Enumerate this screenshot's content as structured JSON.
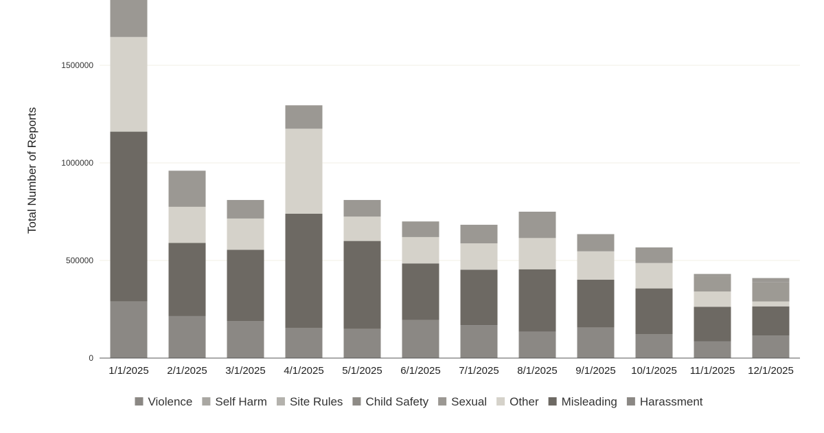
{
  "chart_data": {
    "type": "bar",
    "stacked": true,
    "title": "",
    "xlabel": "",
    "ylabel": "Total Number of Reports",
    "ylim": [
      0,
      1800000
    ],
    "yticks": [
      0,
      500000,
      1000000,
      1500000
    ],
    "ytick_labels": [
      "0",
      "500000",
      "1000000",
      "1500000"
    ],
    "grid": true,
    "legend_position": "bottom",
    "categories": [
      "1/1/2025",
      "2/1/2025",
      "3/1/2025",
      "4/1/2025",
      "5/1/2025",
      "6/1/2025",
      "7/1/2025",
      "8/1/2025",
      "9/1/2025",
      "10/1/2025",
      "11/1/2025",
      "12/1/2025"
    ],
    "series": [
      {
        "name": "Violence",
        "color": "#8b8884",
        "values": [
          290000,
          215000,
          190000,
          155000,
          150000,
          195000,
          168000,
          135000,
          157000,
          122000,
          85000,
          115000
        ]
      },
      {
        "name": "Self Harm",
        "color": "#a9a7a2",
        "values": [
          0,
          0,
          0,
          0,
          0,
          0,
          0,
          0,
          0,
          0,
          0,
          0
        ]
      },
      {
        "name": "Site Rules",
        "color": "#b4b2ad",
        "values": [
          0,
          0,
          0,
          0,
          0,
          0,
          0,
          0,
          0,
          0,
          0,
          0
        ]
      },
      {
        "name": "Child Safety",
        "color": "#9a9894",
        "values": [
          0,
          0,
          0,
          0,
          0,
          0,
          0,
          0,
          0,
          0,
          0,
          0
        ]
      },
      {
        "name": "Sexual",
        "color": "#6d6963",
        "values": [
          870000,
          375000,
          365000,
          585000,
          450000,
          290000,
          285000,
          320000,
          245000,
          235000,
          178000,
          150000
        ]
      },
      {
        "name": "Other",
        "color": "#d5d2ca",
        "values": [
          485000,
          185000,
          160000,
          435000,
          125000,
          135000,
          135000,
          160000,
          145000,
          130000,
          78000,
          25000
        ]
      },
      {
        "name": "Misleading",
        "color": "#9d9a94",
        "values": [
          0,
          0,
          0,
          0,
          0,
          0,
          0,
          0,
          0,
          0,
          80000,
          100000
        ]
      },
      {
        "name": "Harassment",
        "color": "#9b9893",
        "values": [
          200000,
          185000,
          95000,
          120000,
          85000,
          80000,
          95000,
          135000,
          88000,
          80000,
          10000,
          20000
        ]
      }
    ],
    "legend_markers": [
      {
        "name": "Violence",
        "color": "#8b8884"
      },
      {
        "name": "Self Harm",
        "color": "#a9a7a2"
      },
      {
        "name": "Site Rules",
        "color": "#b4b2ad"
      },
      {
        "name": "Child Safety",
        "color": "#8e8b86"
      },
      {
        "name": "Sexual",
        "color": "#9b9893"
      },
      {
        "name": "Other",
        "color": "#d5d2ca"
      },
      {
        "name": "Misleading",
        "color": "#6d6963"
      },
      {
        "name": "Harassment",
        "color": "#8b8884"
      }
    ]
  }
}
